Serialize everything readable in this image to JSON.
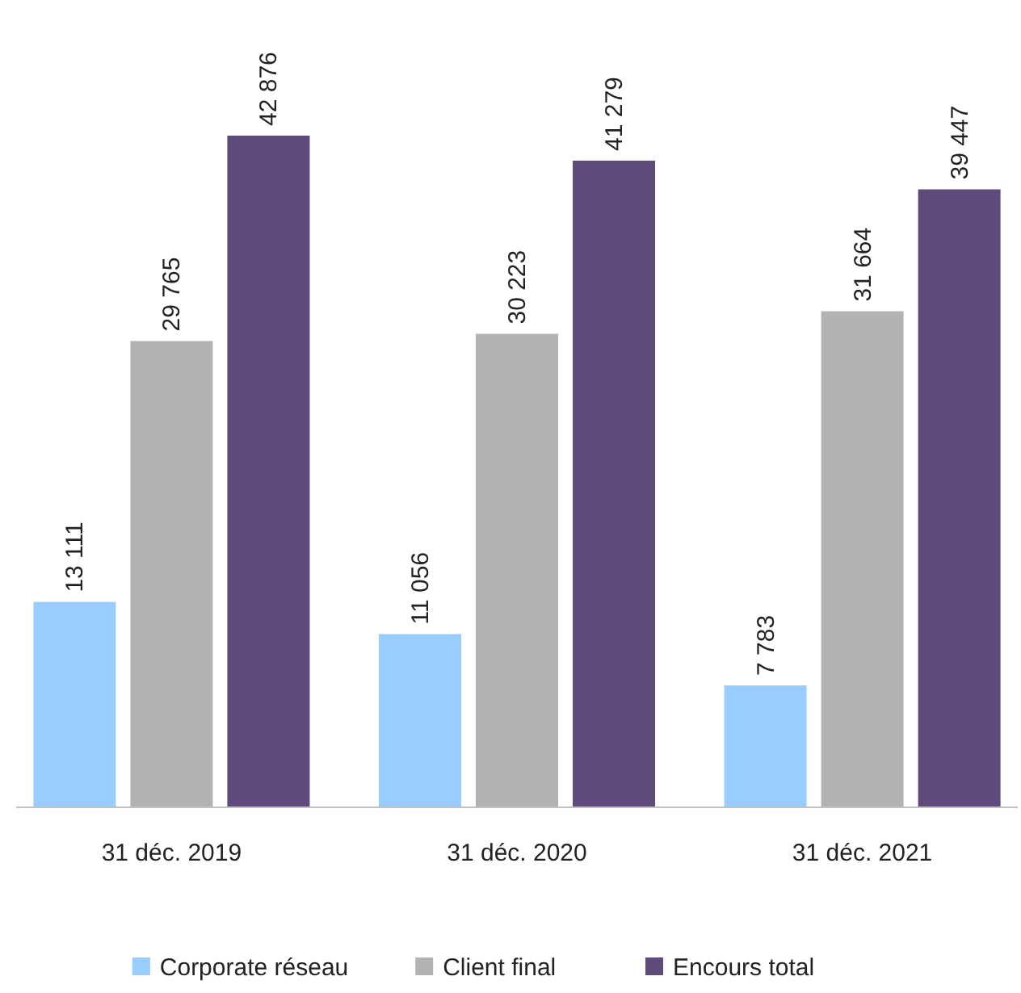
{
  "chart_data": {
    "type": "bar",
    "categories": [
      "31 déc. 2019",
      "31 déc. 2020",
      "31 déc. 2021"
    ],
    "series": [
      {
        "name": "Corporate réseau",
        "color": "#99ccff",
        "values": [
          13111,
          11056,
          7783
        ],
        "value_labels": [
          "13 111",
          "11 056",
          "7 783"
        ]
      },
      {
        "name": "Client final",
        "color": "#b2b2b2",
        "values": [
          29765,
          30223,
          31664
        ],
        "value_labels": [
          "29 765",
          "30 223",
          "31 664"
        ]
      },
      {
        "name": "Encours total",
        "color": "#604a7b",
        "values": [
          42876,
          41279,
          39447
        ],
        "value_labels": [
          "42 876",
          "41 279",
          "39 447"
        ]
      }
    ],
    "legend": "bottom"
  }
}
